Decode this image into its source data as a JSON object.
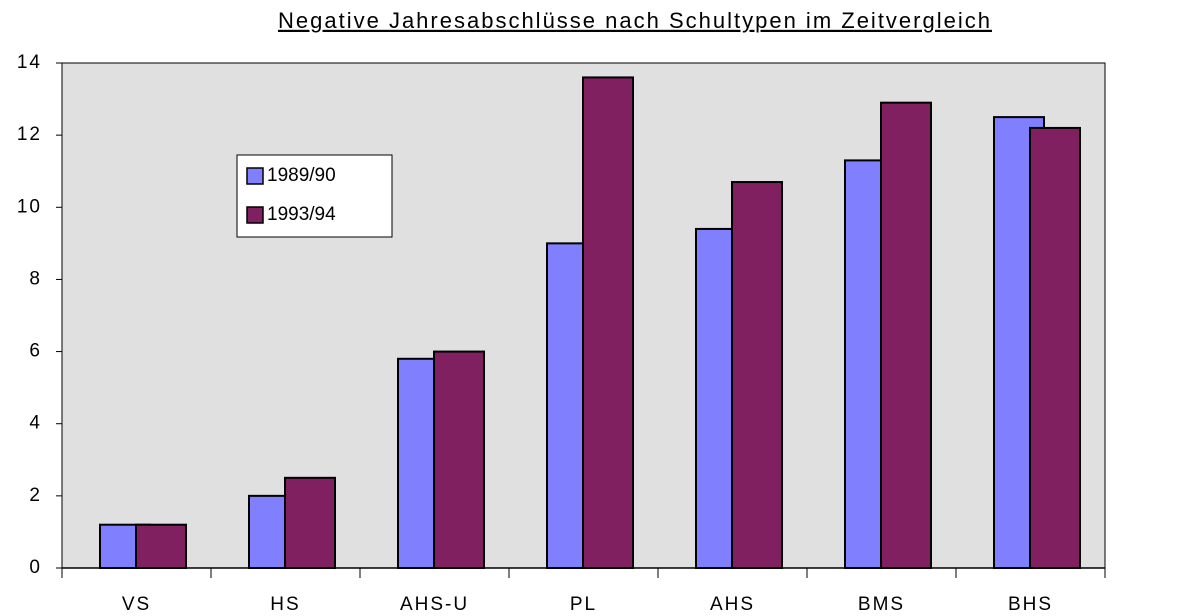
{
  "chart_data": {
    "type": "bar",
    "title": "Negative Jahresabschlüsse nach Schultypen im Zeitvergleich",
    "categories": [
      "VS",
      "HS",
      "AHS-U",
      "PL",
      "AHS",
      "BMS",
      "BHS"
    ],
    "series": [
      {
        "name": "1989/90",
        "color": "#8080ff",
        "values": [
          1.2,
          2.0,
          5.8,
          9.0,
          9.4,
          11.3,
          12.5
        ]
      },
      {
        "name": "1993/94",
        "color": "#802060",
        "values": [
          1.2,
          2.5,
          6.0,
          13.6,
          10.7,
          12.9,
          12.2
        ]
      }
    ],
    "ylim": [
      0,
      14
    ],
    "yticks": [
      0,
      2,
      4,
      6,
      8,
      10,
      12,
      14
    ],
    "grid": false,
    "legend": "upper left"
  }
}
